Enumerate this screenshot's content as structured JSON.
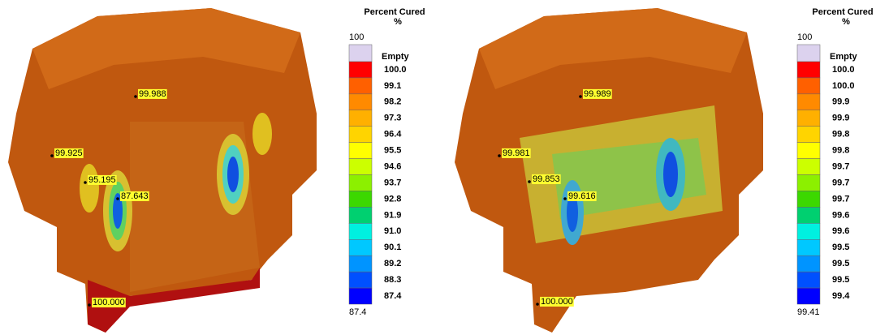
{
  "panels": [
    {
      "legend": {
        "title": "Percent Cured",
        "unit": "%",
        "max_label": "100",
        "empty_label": "Empty",
        "values": [
          "100.0",
          "99.1",
          "98.2",
          "97.3",
          "96.4",
          "95.5",
          "94.6",
          "93.7",
          "92.8",
          "91.9",
          "91.0",
          "90.1",
          "89.2",
          "88.3",
          "87.4"
        ],
        "min_label": "87.4"
      },
      "probes": [
        "99.988",
        "99.925",
        "95.195",
        "87.643",
        "100.000"
      ]
    },
    {
      "legend": {
        "title": "Percent Cured",
        "unit": "%",
        "max_label": "100",
        "empty_label": "Empty",
        "values": [
          "100.0",
          "100.0",
          "99.9",
          "99.9",
          "99.8",
          "99.8",
          "99.7",
          "99.7",
          "99.7",
          "99.6",
          "99.6",
          "99.5",
          "99.5",
          "99.5",
          "99.4"
        ],
        "min_label": "99.41"
      },
      "probes": [
        "99.989",
        "99.981",
        "99.853",
        "99.616",
        "100.000"
      ]
    }
  ],
  "legend_colors": {
    "empty": "#dcd2ee",
    "bands": [
      "#ff0000",
      "#ff6000",
      "#ff8a00",
      "#ffb000",
      "#ffd400",
      "#ffff00",
      "#ccff00",
      "#8cf000",
      "#3cd800",
      "#00d070",
      "#00f0e0",
      "#00c8ff",
      "#0094ff",
      "#0050ff",
      "#0000ff"
    ]
  }
}
